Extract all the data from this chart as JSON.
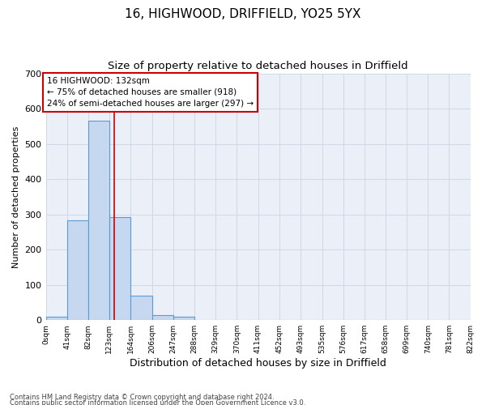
{
  "title1": "16, HIGHWOOD, DRIFFIELD, YO25 5YX",
  "title2": "Size of property relative to detached houses in Driffield",
  "xlabel": "Distribution of detached houses by size in Driffield",
  "ylabel": "Number of detached properties",
  "footnote1": "Contains HM Land Registry data © Crown copyright and database right 2024.",
  "footnote2": "Contains public sector information licensed under the Open Government Licence v3.0.",
  "bin_edges": [
    0,
    41,
    82,
    123,
    164,
    206,
    247,
    288,
    329,
    370,
    411,
    452,
    493,
    535,
    576,
    617,
    658,
    699,
    740,
    781,
    822
  ],
  "bar_heights": [
    10,
    283,
    565,
    293,
    70,
    14,
    10,
    0,
    0,
    0,
    0,
    0,
    0,
    0,
    0,
    0,
    0,
    0,
    0,
    0
  ],
  "bar_color": "#c5d8f0",
  "bar_edge_color": "#5b9bd5",
  "bar_edge_width": 0.8,
  "grid_color": "#d0d8e8",
  "property_size": 132,
  "property_label": "16 HIGHWOOD: 132sqm",
  "annotation_line1": "← 75% of detached houses are smaller (918)",
  "annotation_line2": "24% of semi-detached houses are larger (297) →",
  "vline_color": "#cc0000",
  "annotation_box_color": "#cc0000",
  "ylim": [
    0,
    700
  ],
  "yticks": [
    0,
    100,
    200,
    300,
    400,
    500,
    600,
    700
  ],
  "bg_color": "#ffffff",
  "title1_fontsize": 11,
  "title2_fontsize": 9.5,
  "xlabel_fontsize": 9,
  "ylabel_fontsize": 8,
  "annotation_fontsize": 7.5,
  "footnote_fontsize": 6
}
